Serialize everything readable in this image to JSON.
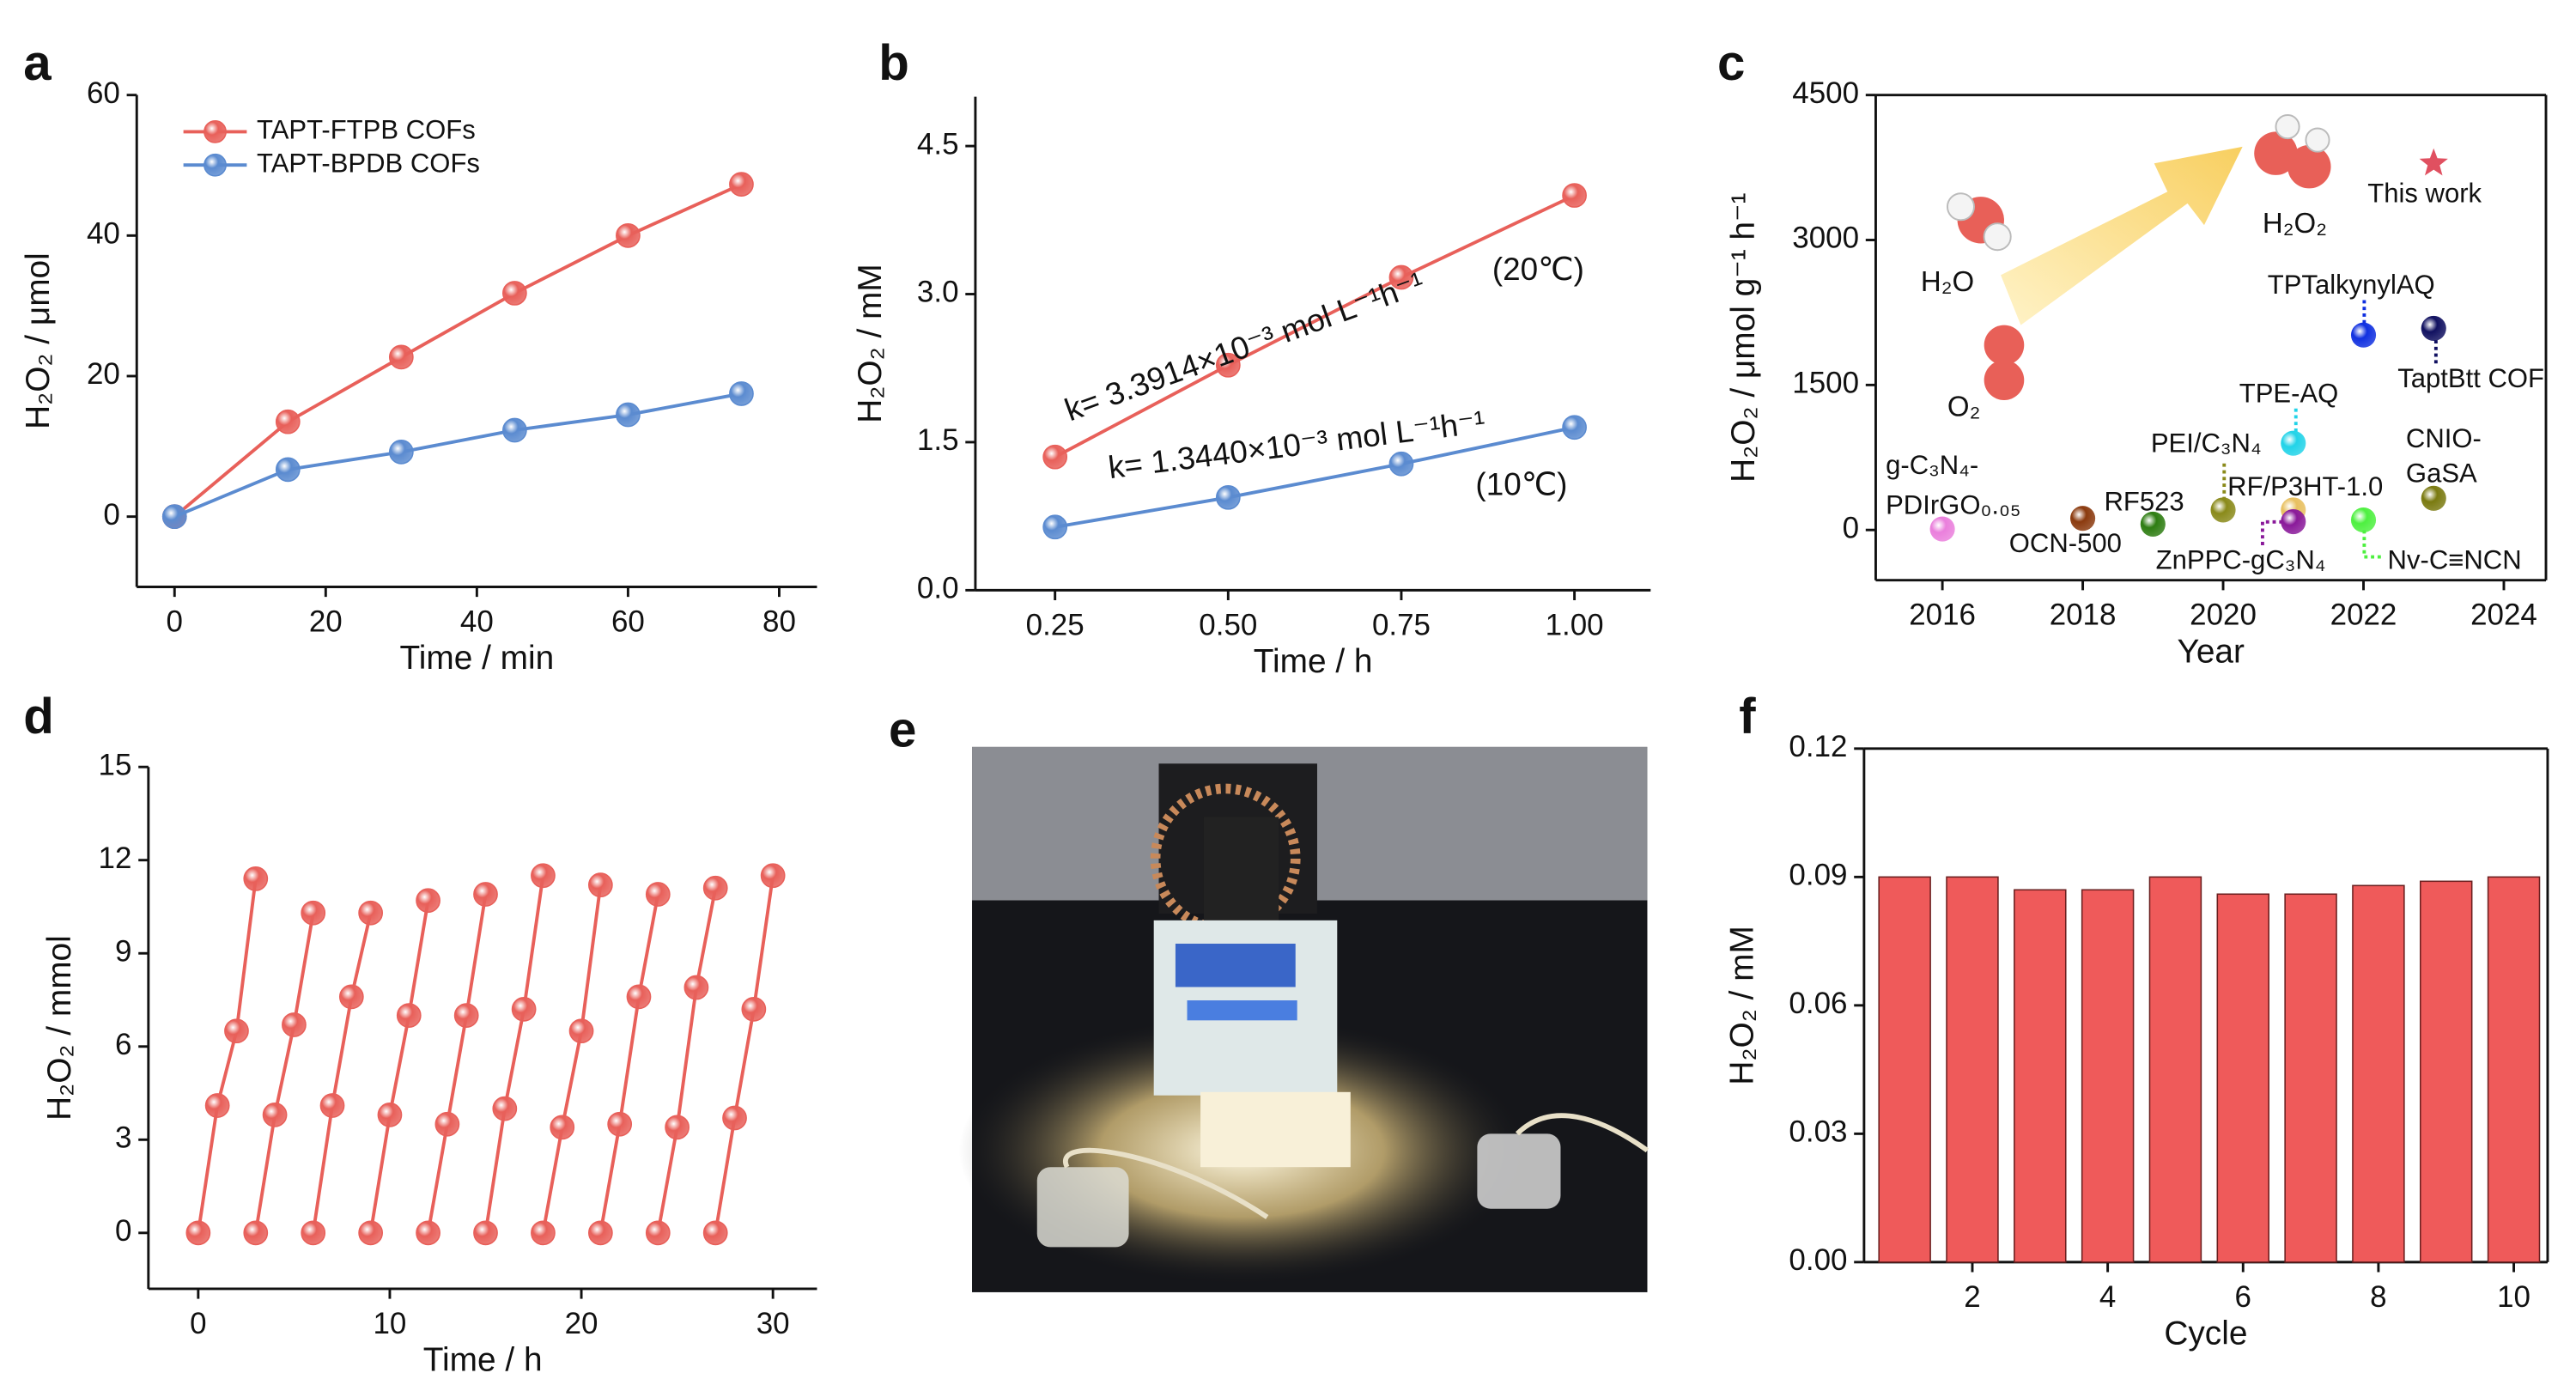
{
  "chart_data": [
    {
      "panel": "a",
      "type": "line",
      "x_label": "Time / min",
      "y_label": "H₂O₂ / μmol",
      "x": [
        0,
        15,
        30,
        45,
        60,
        75
      ],
      "series": [
        {
          "name": "TAPT-FTPB COFs",
          "color": "#e8605a",
          "values": [
            0,
            13.5,
            22.7,
            31.8,
            40,
            47.3
          ]
        },
        {
          "name": "TAPT-BPDB COFs",
          "color": "#5b8bd0",
          "values": [
            0,
            6.7,
            9.2,
            12.3,
            14.5,
            17.5
          ]
        }
      ],
      "xlim": [
        -5,
        85
      ],
      "ylim": [
        -10,
        60
      ],
      "xticks": [
        0,
        20,
        40,
        60,
        80
      ],
      "yticks": [
        0,
        20,
        40,
        60
      ],
      "legend": "upper left"
    },
    {
      "panel": "b",
      "type": "line",
      "x_label": "Time / h",
      "y_label": "H₂O₂ / mM",
      "x": [
        0.25,
        0.5,
        0.75,
        1
      ],
      "series": [
        {
          "color": "#e8605a",
          "values": [
            1.35,
            2.28,
            3.17,
            4.0
          ]
        },
        {
          "color": "#5b8bd0",
          "values": [
            0.64,
            0.94,
            1.28,
            1.65
          ]
        }
      ],
      "xlim": [
        0.135,
        1.11
      ],
      "ylim": [
        0,
        5
      ],
      "xticks": [
        0.25,
        {
          "value": 0.5,
          "label": "0.50"
        },
        0.75,
        {
          "value": 1,
          "label": "1.00"
        }
      ],
      "yticks": [
        {
          "value": 0,
          "label": "0.0"
        },
        1.5,
        {
          "value": 3,
          "label": "3.0"
        },
        4.5
      ],
      "annotations": [
        "k= 3.3914×10⁻³ mol L⁻¹h⁻¹",
        "(20℃)",
        "k= 1.3440×10⁻³ mol L⁻¹h⁻¹",
        "(10℃)"
      ]
    },
    {
      "panel": "c",
      "type": "scatter",
      "x_label": "Year",
      "y_label": "H₂O₂ / μmol g⁻¹ h⁻¹",
      "points": [
        {
          "label": [
            "g-C₃N₄-",
            "PDIrGO₀.₀₅"
          ],
          "x": 2016,
          "y": 10,
          "color": "#ea7fdc"
        },
        {
          "label": "OCN-500",
          "x": 2018,
          "y": 120,
          "color": "#8b3a0e"
        },
        {
          "label": "RF523",
          "x": 2019,
          "y": 60,
          "color": "#2e7d12"
        },
        {
          "label": "PEI/C₃N₄",
          "x": 2020,
          "y": 207,
          "color": "#8a8a1a"
        },
        {
          "label": "TPE-AQ",
          "x": 2021,
          "y": 897,
          "color": "#22d3e8"
        },
        {
          "label": "RF/P3HT-1.0",
          "x": 2021,
          "y": 207,
          "color": "#e8c060"
        },
        {
          "label": "ZnPPC-gC₃N₄",
          "x": 2021,
          "y": 86,
          "color": "#8a1a9a"
        },
        {
          "label": "Nv-C≡NCN",
          "x": 2022,
          "y": 103,
          "color": "#4ef040"
        },
        {
          "label": "TPTalkynylAQ",
          "x": 2022,
          "y": 2017,
          "color": "#1030e0"
        },
        {
          "label": "TaptBtt COF",
          "x": 2023,
          "y": 2086,
          "color": "#101060"
        },
        {
          "label": [
            "CNIO-",
            "GaSA"
          ],
          "x": 2023,
          "y": 328,
          "color": "#7a7a10"
        },
        {
          "label": "This work",
          "x": 2023,
          "y": 3793,
          "color": "#e05060",
          "marker": "star"
        }
      ],
      "xlim": [
        2015.05,
        2024.6
      ],
      "ylim": [
        -520,
        4500
      ],
      "xticks": [
        2016,
        2018,
        2020,
        2022,
        2024
      ],
      "yticks": [
        0,
        1500,
        3000,
        4500
      ],
      "annotations": [
        "H₂O",
        "O₂",
        "H₂O₂"
      ]
    },
    {
      "panel": "d",
      "type": "line",
      "x_label": "Time / h",
      "y_label": "H₂O₂ / mmol",
      "series": [
        {
          "color": "#e8605a",
          "x": [
            0,
            1,
            2,
            3
          ],
          "values": [
            0,
            4.1,
            6.5,
            11.4
          ]
        },
        {
          "color": "#e8605a",
          "x": [
            3,
            4,
            5,
            6
          ],
          "values": [
            0,
            3.8,
            6.7,
            10.3
          ]
        },
        {
          "color": "#e8605a",
          "x": [
            6,
            7,
            8,
            9
          ],
          "values": [
            0,
            4.1,
            7.6,
            10.3
          ]
        },
        {
          "color": "#e8605a",
          "x": [
            9,
            10,
            11,
            12
          ],
          "values": [
            0,
            3.8,
            7.0,
            10.7
          ]
        },
        {
          "color": "#e8605a",
          "x": [
            12,
            13,
            14,
            15
          ],
          "values": [
            0,
            3.5,
            7.0,
            10.9
          ]
        },
        {
          "color": "#e8605a",
          "x": [
            15,
            16,
            17,
            18
          ],
          "values": [
            0,
            4.0,
            7.2,
            11.5
          ]
        },
        {
          "color": "#e8605a",
          "x": [
            18,
            19,
            20,
            21
          ],
          "values": [
            0,
            3.4,
            6.5,
            11.2
          ]
        },
        {
          "color": "#e8605a",
          "x": [
            21,
            22,
            23,
            24
          ],
          "values": [
            0,
            3.5,
            7.6,
            10.9
          ]
        },
        {
          "color": "#e8605a",
          "x": [
            24,
            25,
            26,
            27
          ],
          "values": [
            0,
            3.4,
            7.9,
            11.1
          ]
        },
        {
          "color": "#e8605a",
          "x": [
            27,
            28,
            29,
            30
          ],
          "values": [
            0,
            3.7,
            7.2,
            11.5
          ]
        }
      ],
      "xlim": [
        -2.6,
        32.3
      ],
      "ylim": [
        -1.8,
        15
      ],
      "xticks": [
        0,
        10,
        20,
        30
      ],
      "yticks": [
        0,
        3,
        6,
        9,
        12,
        15
      ]
    },
    {
      "panel": "e",
      "type": "photo"
    },
    {
      "panel": "f",
      "type": "bar",
      "x_label": "Cycle",
      "y_label": "H₂O₂ / mM",
      "color": "#ef5a5a",
      "x": [
        1,
        2,
        3,
        4,
        5,
        6,
        7,
        8,
        9,
        10
      ],
      "values": [
        0.09,
        0.09,
        0.087,
        0.087,
        0.09,
        0.086,
        0.086,
        0.088,
        0.089,
        0.09
      ],
      "xlim": [
        0.4,
        10.5
      ],
      "ylim": [
        0,
        0.12
      ],
      "xticks": [
        2,
        4,
        6,
        8,
        10
      ],
      "yticks": [
        {
          "value": 0,
          "label": "0.00"
        },
        {
          "value": 0.03,
          "label": "0.03"
        },
        {
          "value": 0.06,
          "label": "0.06"
        },
        {
          "value": 0.09,
          "label": "0.09"
        },
        {
          "value": 0.12,
          "label": "0.12"
        }
      ]
    }
  ]
}
